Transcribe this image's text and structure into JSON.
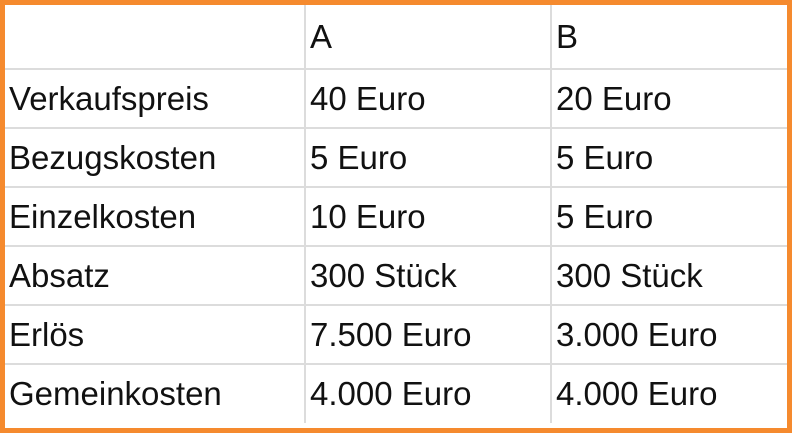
{
  "accent_color": "#f58a2e",
  "table": {
    "header": [
      "",
      "A",
      "B"
    ],
    "rows": [
      [
        "Verkaufspreis",
        "40 Euro",
        "20 Euro"
      ],
      [
        "Bezugskosten",
        "5 Euro",
        "5 Euro"
      ],
      [
        "Einzelkosten",
        "10 Euro",
        "5 Euro"
      ],
      [
        "Absatz",
        "300 Stück",
        "300 Stück"
      ],
      [
        "Erlös",
        "7.500 Euro",
        "3.000 Euro"
      ],
      [
        "Gemeinkosten",
        "4.000 Euro",
        "4.000 Euro"
      ]
    ]
  }
}
